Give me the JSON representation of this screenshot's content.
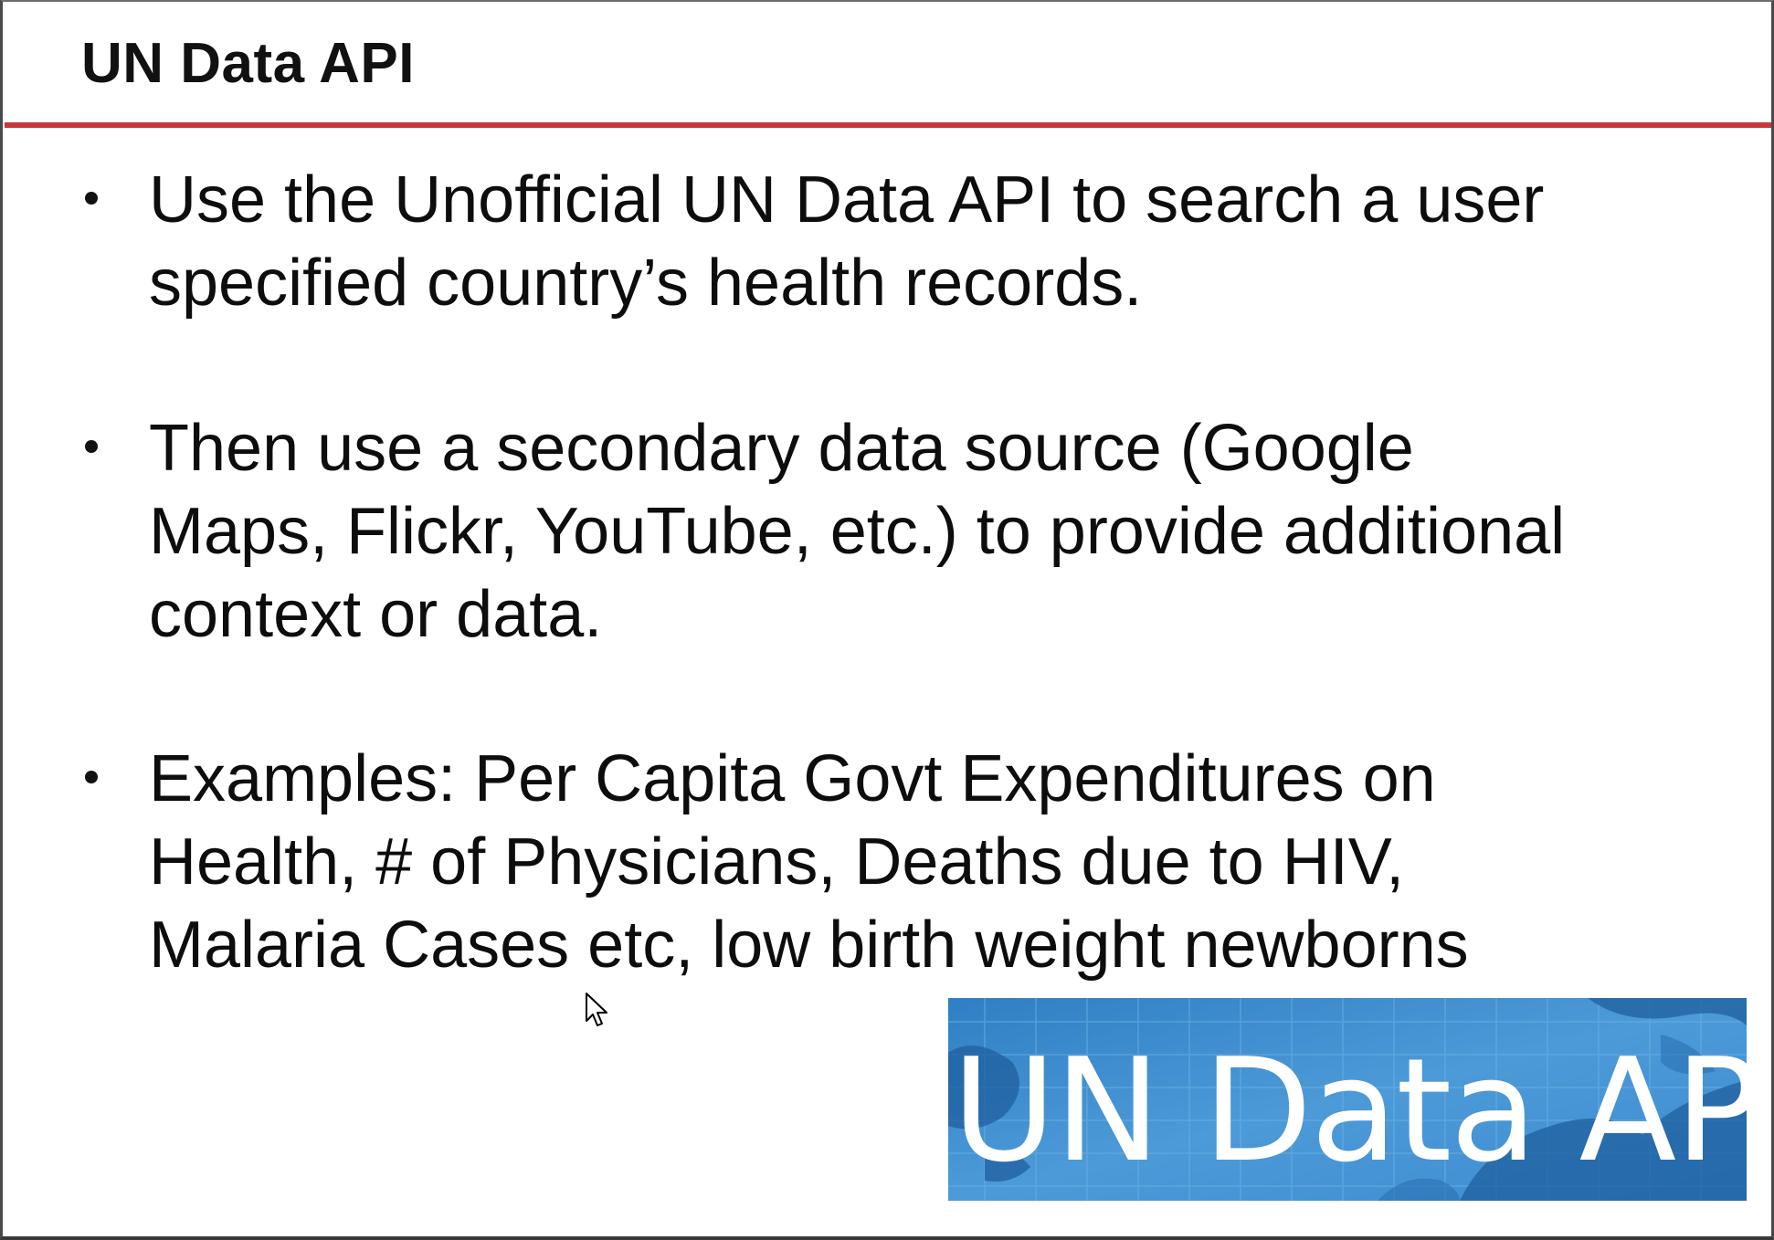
{
  "slide": {
    "title": "UN Data API",
    "bullets": [
      "Use the Unofficial UN Data API to search a user\nspecified country’s health records.",
      "Then use a secondary data source (Google\nMaps, Flickr, YouTube, etc.) to provide additional\ncontext or data.",
      "Examples: Per Capita Govt Expenditures on\nHealth, # of Physicians, Deaths due to HIV,\nMalaria Cases etc, low birth weight newborns"
    ],
    "banner_text": "UN Data API"
  },
  "colors": {
    "title_rule": "#c8373a",
    "banner_background": "#3f8ed0",
    "text": "#0d0d0d"
  },
  "icons": {
    "cursor": "mouse-pointer-icon",
    "bullet": "bullet-dot-icon"
  }
}
